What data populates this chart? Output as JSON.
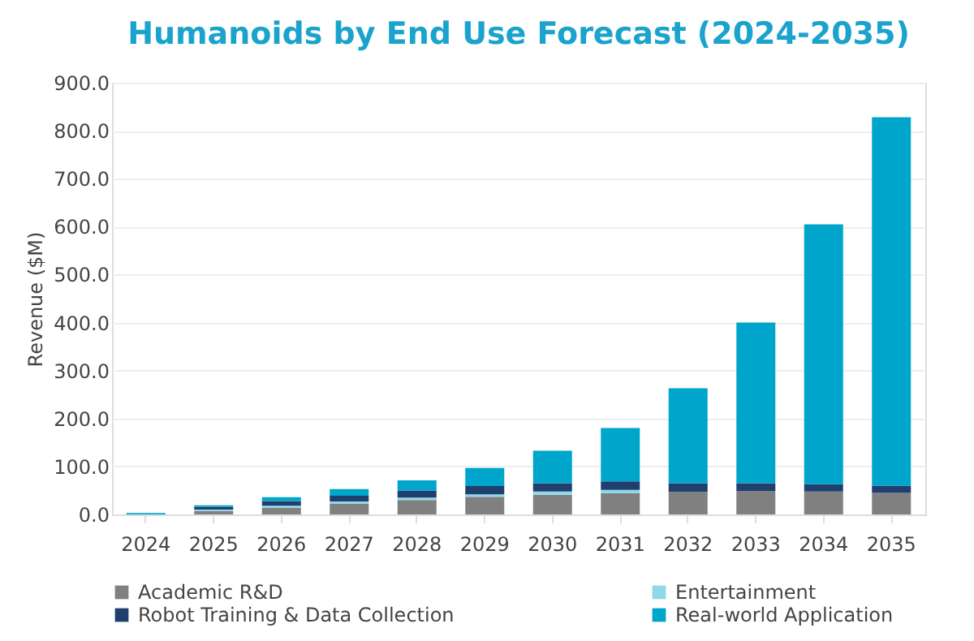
{
  "chart_data": {
    "type": "bar",
    "stacked": true,
    "title": "Humanoids by End Use Forecast (2024-2035)",
    "ylabel": "Revenue ($M)",
    "categories": [
      "2024",
      "2025",
      "2026",
      "2027",
      "2028",
      "2029",
      "2030",
      "2031",
      "2032",
      "2033",
      "2034",
      "2035"
    ],
    "series": [
      {
        "name": "Academic R&D",
        "color": "#808080",
        "values": [
          null,
          7,
          14,
          22,
          30,
          37,
          41,
          44,
          47,
          49,
          48,
          45
        ]
      },
      {
        "name": "Entertainment",
        "color": "#8ed8ea",
        "values": [
          null,
          3,
          4,
          5,
          5,
          5,
          7,
          7,
          null,
          null,
          null,
          null
        ]
      },
      {
        "name": "Robot Training & Data Collection",
        "color": "#1f3f6e",
        "values": [
          null,
          6,
          10,
          12,
          15,
          17,
          17,
          18,
          18,
          16,
          15,
          15
        ]
      },
      {
        "name": "Real-world Application",
        "color": "#00a5cc",
        "values": [
          3,
          3,
          8,
          14,
          21,
          38,
          68,
          111,
          198,
          335,
          542,
          768
        ]
      }
    ],
    "ylim": [
      0,
      900
    ],
    "yticks": [
      {
        "value": 0,
        "label": "0.0"
      },
      {
        "value": 100,
        "label": "100.0"
      },
      {
        "value": 200,
        "label": "200.0"
      },
      {
        "value": 300,
        "label": "300.0"
      },
      {
        "value": 400,
        "label": "400.0"
      },
      {
        "value": 500,
        "label": "500.0"
      },
      {
        "value": 600,
        "label": "600.0"
      },
      {
        "value": 700,
        "label": "700.0"
      },
      {
        "value": 800,
        "label": "800.0"
      },
      {
        "value": 900,
        "label": "900.0"
      }
    ],
    "grid": "y",
    "legend": "bottom"
  }
}
